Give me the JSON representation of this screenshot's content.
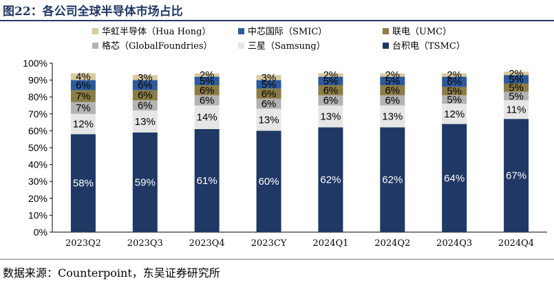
{
  "header": {
    "title": "图22：各公司全球半导体市场占比"
  },
  "footer": {
    "source": "数据来源：Counterpoint，东吴证券研究所"
  },
  "chart_data": {
    "type": "bar",
    "stacked": true,
    "title": "图22：各公司全球半导体市场占比",
    "categories": [
      "2023Q2",
      "2023Q3",
      "2023Q4",
      "2023CY",
      "2024Q1",
      "2024Q2",
      "2024Q3",
      "2024Q4"
    ],
    "ylim": [
      0,
      100
    ],
    "ylabel": "",
    "xlabel": "",
    "yticks": [
      "0%",
      "10%",
      "20%",
      "30%",
      "40%",
      "50%",
      "60%",
      "70%",
      "80%",
      "90%",
      "100%"
    ],
    "legend_position": "top",
    "series": [
      {
        "key": "tsmc",
        "name": "台积电（TSMC）",
        "color": "#1f3864",
        "label_color": "#ffffff",
        "values": [
          58,
          59,
          61,
          60,
          62,
          62,
          64,
          67
        ]
      },
      {
        "key": "samsung",
        "name": "三星（Samsung）",
        "color": "#e6e6e6",
        "label_color": "#000000",
        "values": [
          12,
          13,
          14,
          13,
          13,
          13,
          12,
          11
        ]
      },
      {
        "key": "gf",
        "name": "格芯（GlobalFoundries）",
        "color": "#b3b3b3",
        "label_color": "#000000",
        "values": [
          7,
          6,
          6,
          6,
          6,
          6,
          5,
          5
        ]
      },
      {
        "key": "umc",
        "name": "联电（UMC）",
        "color": "#8b7d45",
        "label_color": "#000000",
        "values": [
          7,
          6,
          6,
          6,
          6,
          6,
          5,
          5
        ]
      },
      {
        "key": "smic",
        "name": "中芯国际（SMIC）",
        "color": "#2e5a9c",
        "label_color": "#000000",
        "values": [
          6,
          6,
          5,
          5,
          5,
          5,
          6,
          5
        ]
      },
      {
        "key": "huahong",
        "name": "华虹半导体（Hua Hong）",
        "color": "#d9caa0",
        "label_color": "#000000",
        "values": [
          4,
          3,
          2,
          3,
          2,
          2,
          2,
          2
        ]
      }
    ],
    "label_suffix": "%"
  }
}
